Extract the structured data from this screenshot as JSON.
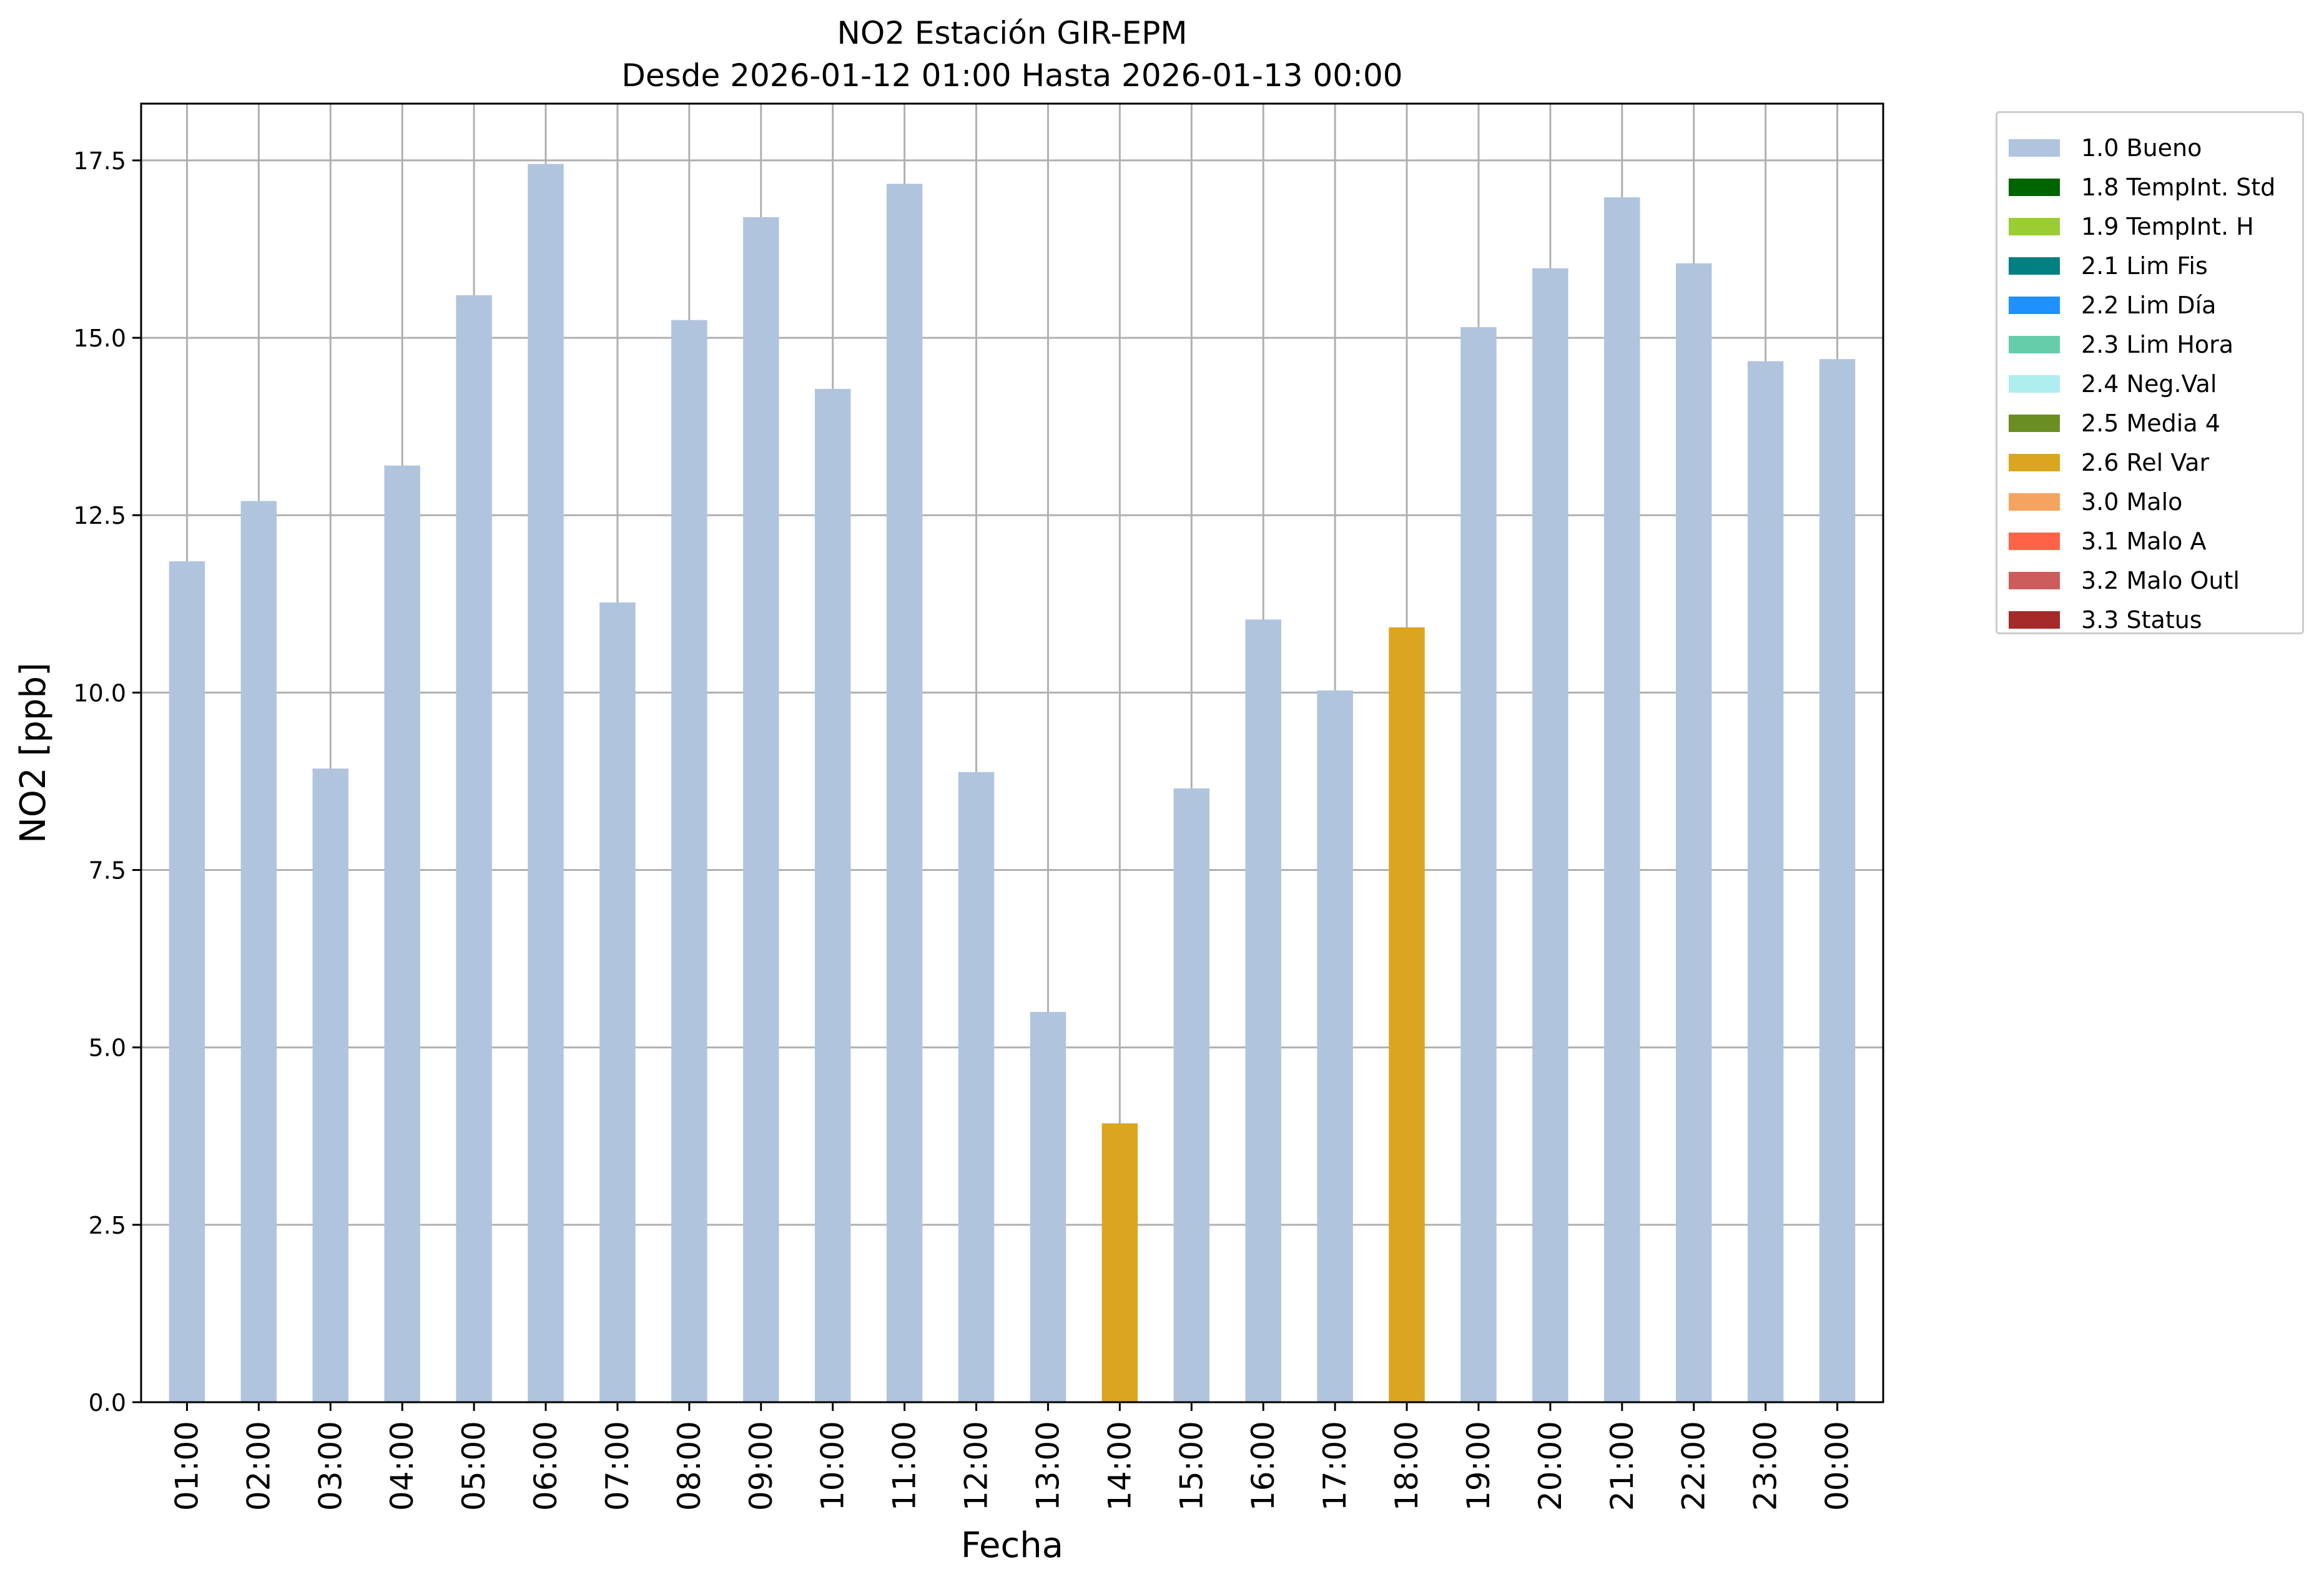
{
  "chart_data": {
    "type": "bar",
    "title": "NO2 Estación GIR-EPM",
    "subtitle": "Desde 2026-01-12 01:00 Hasta 2026-01-13 00:00",
    "xlabel": "Fecha",
    "ylabel": "NO2 [ppb]",
    "ylim": [
      0,
      18.3
    ],
    "yticks": [
      "0.0",
      "2.5",
      "5.0",
      "7.5",
      "10.0",
      "12.5",
      "15.0",
      "17.5"
    ],
    "grid": true,
    "legend_position": "outside-top-right",
    "categories": [
      "01:00",
      "02:00",
      "03:00",
      "04:00",
      "05:00",
      "06:00",
      "07:00",
      "08:00",
      "09:00",
      "10:00",
      "11:00",
      "12:00",
      "13:00",
      "14:00",
      "15:00",
      "16:00",
      "17:00",
      "18:00",
      "19:00",
      "20:00",
      "21:00",
      "22:00",
      "23:00",
      "00:00"
    ],
    "values": [
      11.85,
      12.7,
      8.93,
      13.2,
      15.6,
      17.45,
      11.27,
      15.25,
      16.7,
      14.28,
      17.17,
      8.88,
      5.5,
      3.93,
      8.65,
      11.03,
      10.03,
      10.92,
      15.15,
      15.98,
      16.98,
      16.05,
      14.67,
      14.7
    ],
    "flags": [
      "1.0 Bueno",
      "1.0 Bueno",
      "1.0 Bueno",
      "1.0 Bueno",
      "1.0 Bueno",
      "1.0 Bueno",
      "1.0 Bueno",
      "1.0 Bueno",
      "1.0 Bueno",
      "1.0 Bueno",
      "1.0 Bueno",
      "1.0 Bueno",
      "1.0 Bueno",
      "2.6 Rel Var",
      "1.0 Bueno",
      "1.0 Bueno",
      "1.0 Bueno",
      "2.6 Rel Var",
      "1.0 Bueno",
      "1.0 Bueno",
      "1.0 Bueno",
      "1.0 Bueno",
      "1.0 Bueno",
      "1.0 Bueno"
    ],
    "legend": [
      {
        "label": "1.0 Bueno",
        "color": "#b0c4de"
      },
      {
        "label": "1.8 TempInt. Std",
        "color": "#006400"
      },
      {
        "label": "1.9 TempInt. H",
        "color": "#9acd32"
      },
      {
        "label": "2.1 Lim Fis",
        "color": "#008080"
      },
      {
        "label": "2.2 Lim Día",
        "color": "#1e90ff"
      },
      {
        "label": "2.3 Lim Hora",
        "color": "#66cdaa"
      },
      {
        "label": "2.4 Neg.Val",
        "color": "#afeeee"
      },
      {
        "label": "2.5 Media 4",
        "color": "#6b8e23"
      },
      {
        "label": "2.6 Rel Var",
        "color": "#daa520"
      },
      {
        "label": "3.0 Malo",
        "color": "#f4a460"
      },
      {
        "label": "3.1 Malo A",
        "color": "#ff6347"
      },
      {
        "label": "3.2 Malo Outl",
        "color": "#cd5c5c"
      },
      {
        "label": "3.3 Status",
        "color": "#a52a2a"
      }
    ]
  }
}
